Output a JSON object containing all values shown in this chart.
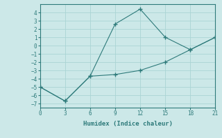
{
  "xlabel": "Humidex (Indice chaleur)",
  "line1_x": [
    0,
    3,
    6,
    9,
    12,
    15,
    18,
    21
  ],
  "line1_y": [
    -5.0,
    -6.7,
    -3.7,
    2.6,
    4.4,
    1.0,
    -0.5,
    1.0
  ],
  "line2_x": [
    0,
    3,
    6,
    9,
    12,
    15,
    18,
    21
  ],
  "line2_y": [
    -5.0,
    -6.7,
    -3.7,
    -3.5,
    -3.0,
    -2.0,
    -0.5,
    1.0
  ],
  "line_color": "#2d7a7a",
  "bg_color": "#cce8e8",
  "grid_color": "#aad4d4",
  "xlim": [
    0,
    21
  ],
  "ylim": [
    -7.5,
    5.0
  ],
  "xticks": [
    0,
    3,
    6,
    9,
    12,
    15,
    18,
    21
  ],
  "yticks": [
    -7,
    -6,
    -5,
    -4,
    -3,
    -2,
    -1,
    0,
    1,
    2,
    3,
    4
  ],
  "marker": "+"
}
